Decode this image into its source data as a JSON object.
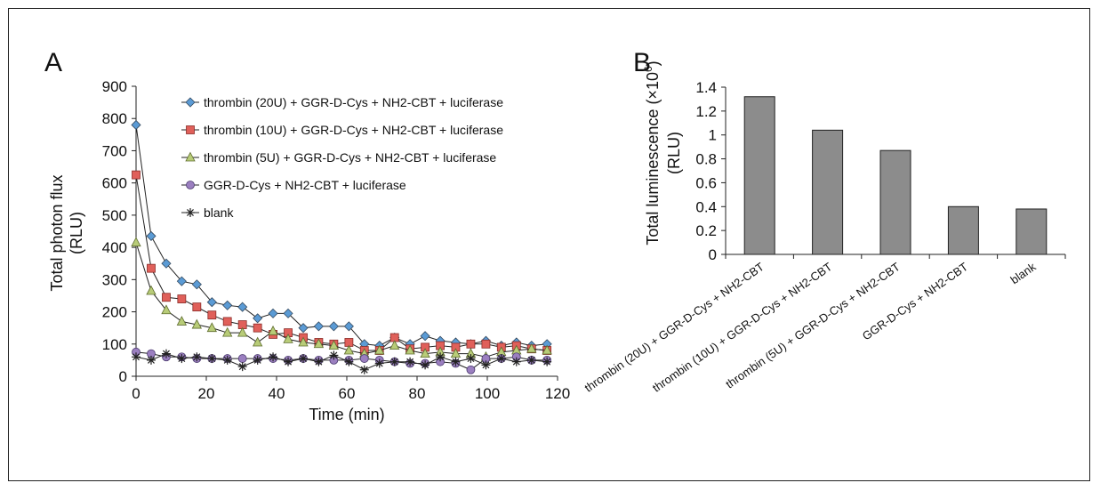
{
  "chart_data": [
    {
      "panel_label": "A",
      "type": "line",
      "xlabel": "Time (min)",
      "ylabel_line1": "Total photon flux",
      "ylabel_line2": "(RLU)",
      "xlim": [
        0,
        120
      ],
      "ylim": [
        0,
        900
      ],
      "xticks": [
        0,
        20,
        40,
        60,
        80,
        100,
        120
      ],
      "yticks": [
        0,
        100,
        200,
        300,
        400,
        500,
        600,
        700,
        800,
        900
      ],
      "x": [
        0,
        4.3,
        8.6,
        13,
        17.3,
        21.6,
        26,
        30.3,
        34.6,
        39,
        43.3,
        47.6,
        52,
        56.3,
        60.6,
        65,
        69.3,
        73.6,
        78,
        82.3,
        86.6,
        91,
        95.3,
        99.6,
        104,
        108.3,
        112.6,
        117
      ],
      "series": [
        {
          "name": "thrombin (20U) + GGR-D-Cys + NH2-CBT + luciferase",
          "marker": "diamond",
          "color": "#5b9bd5",
          "values": [
            780,
            435,
            350,
            295,
            285,
            230,
            220,
            215,
            180,
            195,
            195,
            150,
            155,
            155,
            155,
            100,
            95,
            120,
            100,
            125,
            110,
            105,
            100,
            110,
            95,
            105,
            95,
            100
          ]
        },
        {
          "name": "thrombin (10U) + GGR-D-Cys + NH2-CBT + luciferase",
          "marker": "square",
          "color": "#e0605a",
          "values": [
            625,
            335,
            245,
            240,
            215,
            190,
            170,
            160,
            150,
            130,
            135,
            120,
            105,
            100,
            105,
            80,
            80,
            120,
            85,
            90,
            95,
            90,
            100,
            100,
            90,
            95,
            85,
            80
          ]
        },
        {
          "name": "thrombin (5U) + GGR-D-Cys + NH2-CBT + luciferase",
          "marker": "triangle",
          "color": "#b8cc78",
          "values": [
            415,
            265,
            205,
            170,
            160,
            150,
            135,
            135,
            105,
            140,
            115,
            105,
            100,
            95,
            80,
            70,
            80,
            95,
            80,
            70,
            75,
            70,
            70,
            60,
            75,
            80,
            85,
            80
          ]
        },
        {
          "name": "GGR-D-Cys + NH2-CBT + luciferase",
          "marker": "circle",
          "color": "#9b7fc0",
          "values": [
            75,
            70,
            60,
            60,
            55,
            55,
            55,
            55,
            55,
            55,
            50,
            55,
            50,
            50,
            50,
            55,
            50,
            45,
            40,
            40,
            45,
            40,
            20,
            55,
            55,
            60,
            50,
            50
          ]
        },
        {
          "name": "blank",
          "marker": "star",
          "color": "#222222",
          "values": [
            60,
            50,
            70,
            55,
            60,
            55,
            50,
            30,
            50,
            60,
            45,
            55,
            45,
            65,
            45,
            20,
            40,
            45,
            45,
            35,
            60,
            45,
            55,
            35,
            55,
            45,
            50,
            45
          ]
        }
      ]
    },
    {
      "panel_label": "B",
      "type": "bar",
      "ylabel_line1": "Total luminescence (×10",
      "ylabel_exp": "6",
      "ylabel_close": ")",
      "ylabel_line2": "(RLU)",
      "ylim": [
        0,
        1.4
      ],
      "yticks": [
        0,
        0.2,
        0.4,
        0.6,
        0.8,
        1,
        1.2,
        1.4
      ],
      "ytick_labels": [
        "0",
        "0.2",
        "0.4",
        "0.6",
        "0.8",
        "1",
        "1.2",
        "1.4"
      ],
      "categories": [
        "thrombin (20U) + GGR-D-Cys + NH2-CBT",
        "thrombin (10U) + GGR-D-Cys + NH2-CBT",
        "thrombin (5U) + GGR-D-Cys + NH2-CBT",
        "GGR-D-Cys + NH2-CBT",
        "blank"
      ],
      "values": [
        1.32,
        1.04,
        0.87,
        0.4,
        0.38
      ],
      "bar_color": "#8c8c8c"
    }
  ]
}
